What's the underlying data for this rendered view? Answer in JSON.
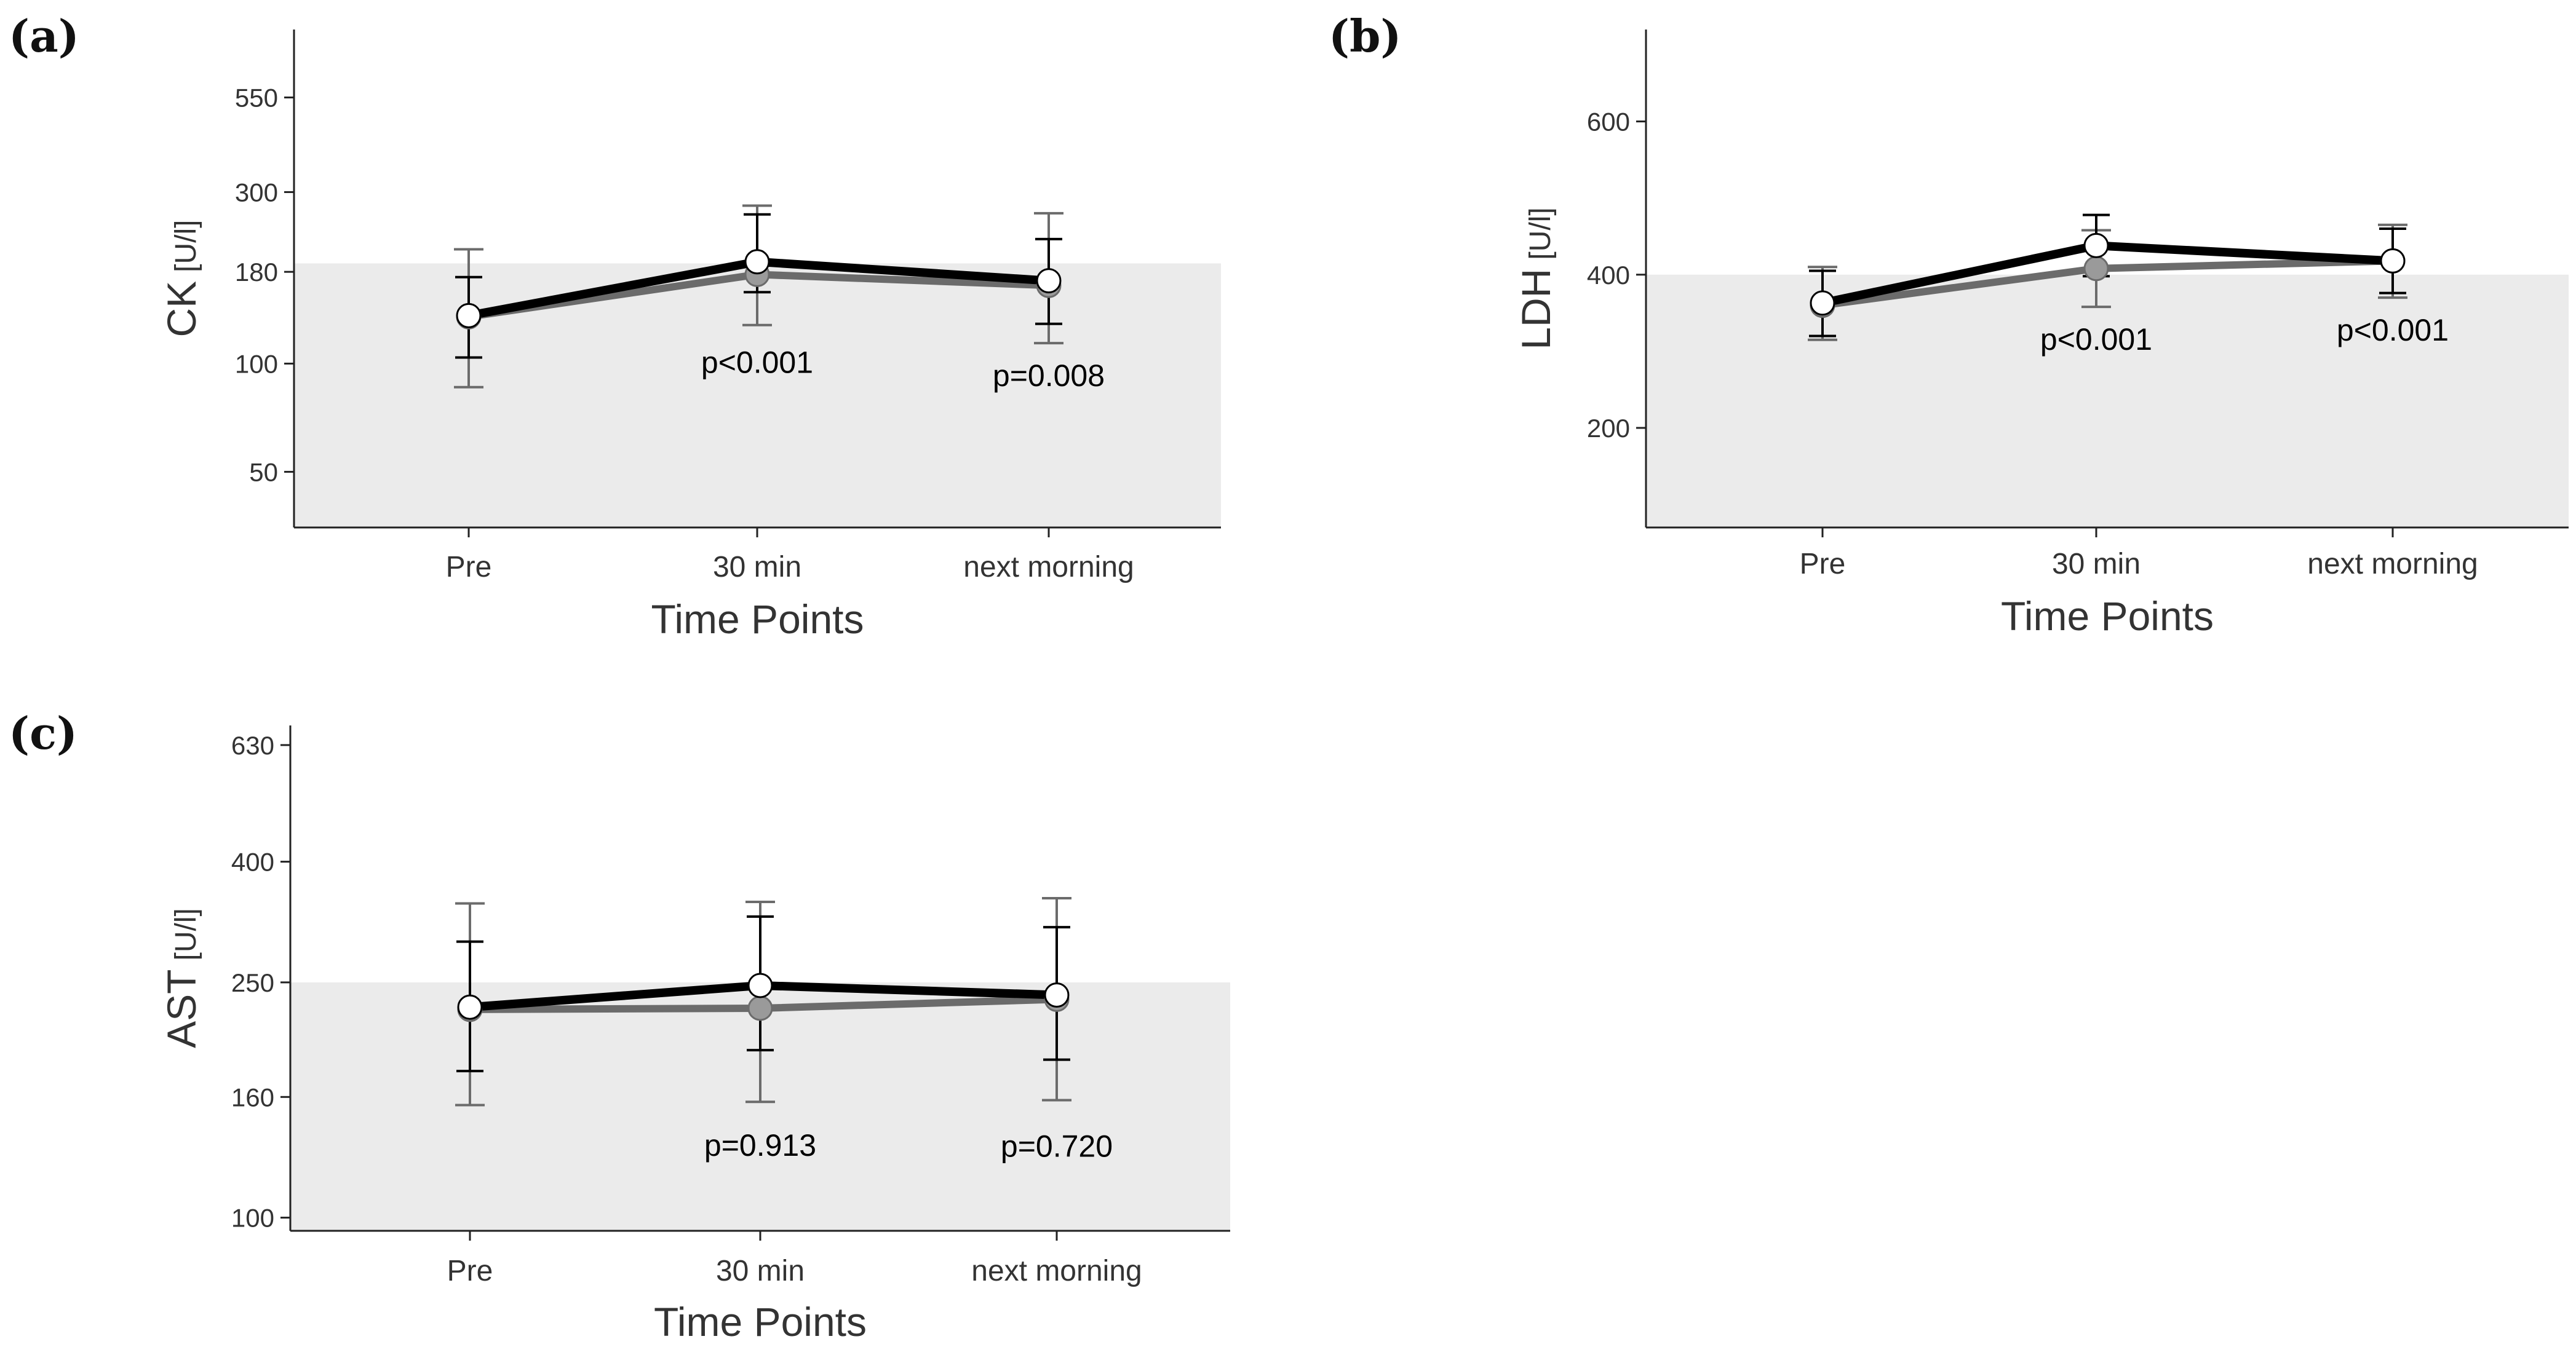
{
  "chart_data": [
    {
      "panel": "(a)",
      "type": "line",
      "ylabel": "CK",
      "ylabel_unit": "[U/l]",
      "xlabel": "Time Points",
      "categories": [
        "Pre",
        "30 min",
        "next morning"
      ],
      "yscale": "log",
      "ylim": [
        35,
        850
      ],
      "yticks": [
        50,
        100,
        180,
        300,
        550
      ],
      "yticklabels": [
        "50",
        "100",
        "180",
        "300",
        "550"
      ],
      "reference_range_upper": 190,
      "series": [
        {
          "name": "series-gray",
          "color": "#6b6b6b",
          "values": [
            135,
            177,
            165
          ],
          "err_lo": [
            86,
            128,
            114
          ],
          "err_hi": [
            208,
            275,
            262
          ]
        },
        {
          "name": "series-black",
          "color": "#000000",
          "values": [
            136,
            192,
            170
          ],
          "err_lo": [
            104,
            158,
            129
          ],
          "err_hi": [
            174,
            260,
            222
          ]
        }
      ],
      "annotations": [
        "",
        "p<0.001",
        "p=0.008"
      ]
    },
    {
      "panel": "(b)",
      "type": "line",
      "ylabel": "LDH",
      "ylabel_unit": "[U/l]",
      "xlabel": "Time Points",
      "categories": [
        "Pre",
        "30 min",
        "next morning"
      ],
      "yscale": "linear",
      "ylim": [
        70,
        720
      ],
      "yticks": [
        200,
        400,
        600
      ],
      "yticklabels": [
        "200",
        "400",
        "600"
      ],
      "reference_range_upper": 400,
      "series": [
        {
          "name": "series-gray",
          "color": "#6b6b6b",
          "values": [
            360,
            408,
            418
          ],
          "err_lo": [
            315,
            358,
            370
          ],
          "err_hi": [
            410,
            458,
            465
          ]
        },
        {
          "name": "series-black",
          "color": "#000000",
          "values": [
            363,
            438,
            418
          ],
          "err_lo": [
            320,
            398,
            376
          ],
          "err_hi": [
            405,
            478,
            460
          ]
        }
      ],
      "annotations": [
        "",
        "p<0.001",
        "p<0.001"
      ]
    },
    {
      "panel": "(c)",
      "type": "line",
      "ylabel": "AST",
      "ylabel_unit": "[U/l]",
      "xlabel": "Time Points",
      "categories": [
        "Pre",
        "30 min",
        "next morning"
      ],
      "yscale": "log",
      "ylim": [
        95,
        680
      ],
      "yticks": [
        100,
        160,
        250,
        400,
        630
      ],
      "yticklabels": [
        "100",
        "160",
        "250",
        "400",
        "630"
      ],
      "reference_range_upper": 250,
      "series": [
        {
          "name": "series-gray",
          "color": "#6b6b6b",
          "values": [
            225,
            226,
            234
          ],
          "err_lo": [
            155,
            157,
            158
          ],
          "err_hi": [
            340,
            342,
            347
          ]
        },
        {
          "name": "series-black",
          "color": "#000000",
          "values": [
            227,
            247,
            238
          ],
          "err_lo": [
            177,
            192,
            185
          ],
          "err_hi": [
            293,
            323,
            310
          ]
        }
      ],
      "annotations": [
        "",
        "p=0.913",
        "p=0.720"
      ]
    }
  ]
}
